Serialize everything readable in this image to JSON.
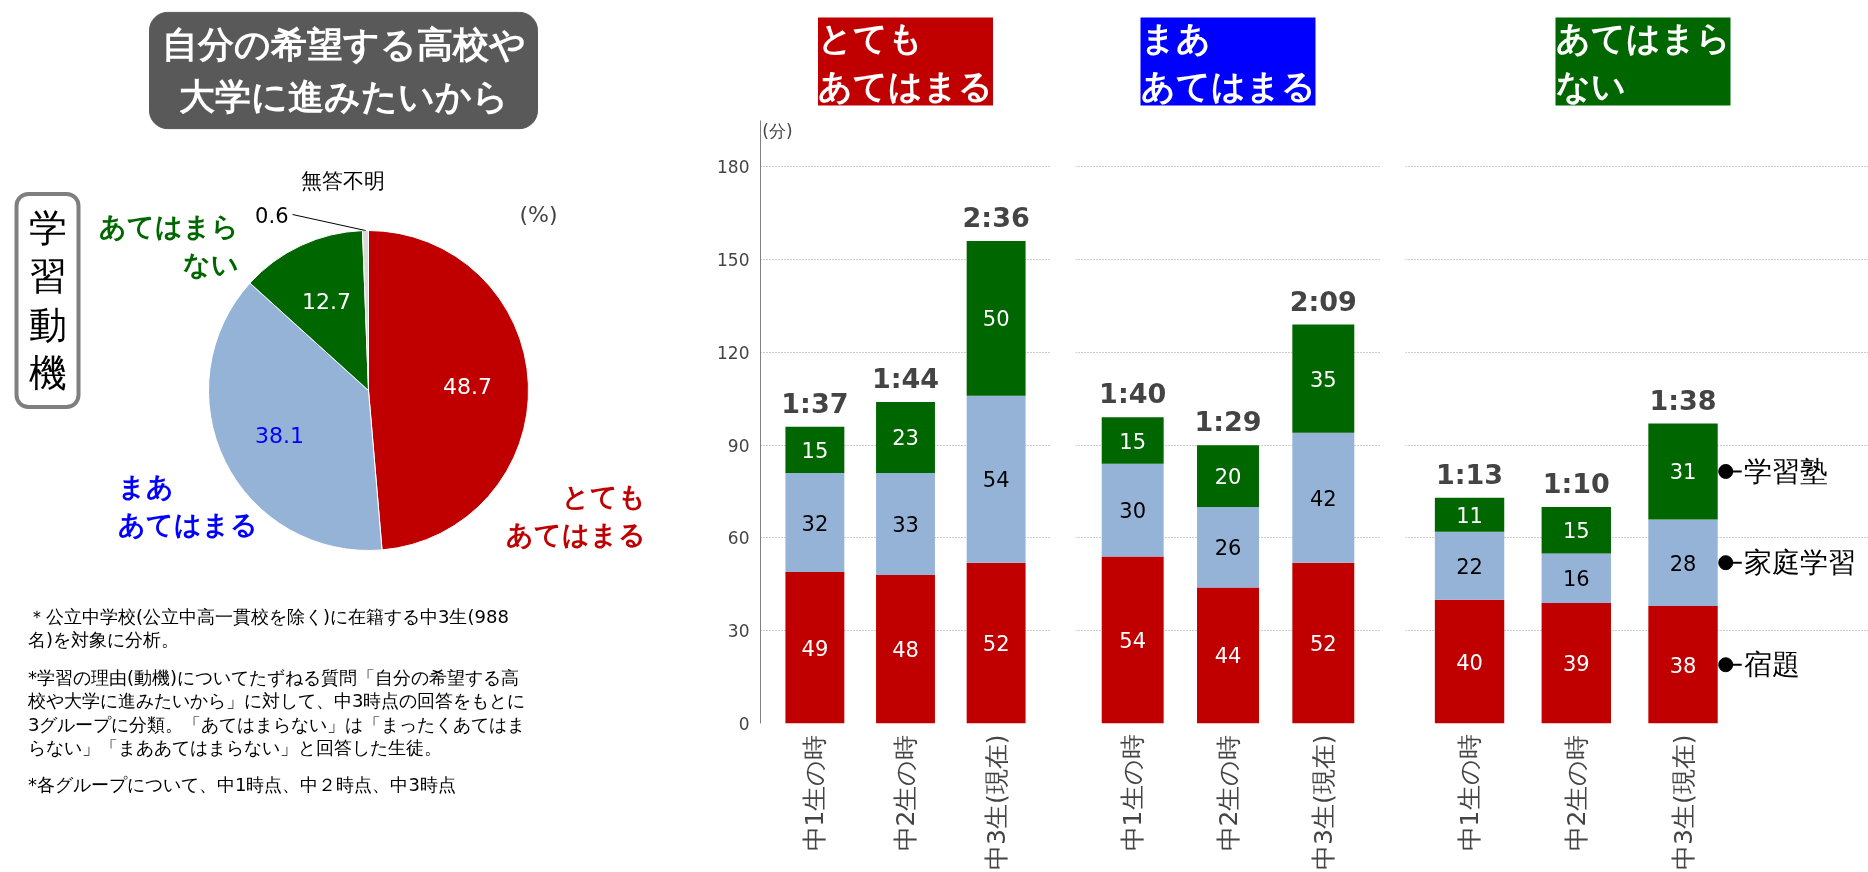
{
  "chart_data": [
    {
      "type": "pie",
      "title": "自分の希望する高校や大学に進みたいから",
      "categories": [
        "とてもあてはまる",
        "まああてはまる",
        "あてはまらない",
        "無答不明"
      ],
      "values": [
        48.7,
        38.1,
        12.7,
        0.6
      ],
      "colors": [
        "#c00000",
        "#95b3d7",
        "#006600",
        "#d9d9d9"
      ],
      "data_labels": true,
      "annotations": [
        "学習動機",
        "(%)",
        "＊公立中学校(公立中高一貫校を除く)に在籍する中3生(988名)を対象に分析。",
        "*学習の理由(動機)についてたずねる質問「自分の希望する高校や大学に進みたいから」に対して、中3時点の回答をもとに3グループに分類。「あてはまらない」は「まったくあてはまらない」「まああてはまらない」と回答した生徒。",
        "*各グループについて、中1時点、中２時点、中3時点"
      ]
    },
    {
      "type": "bar",
      "title": "とてもあてはまる",
      "ylabel": "(分)",
      "stacked": true,
      "categories": [
        "中1生の時",
        "中2生の時",
        "中3生(現在)"
      ],
      "series": [
        {
          "color": "#c00000",
          "values": [
            49,
            48,
            52
          ]
        },
        {
          "color": "#95b3d7",
          "values": [
            32,
            33,
            54
          ]
        },
        {
          "color": "#006600",
          "values": [
            15,
            23,
            50
          ]
        }
      ],
      "ylim": [
        0,
        195
      ],
      "yticks": [
        0,
        30,
        60,
        90,
        120,
        150,
        180
      ],
      "grid": "y",
      "data_labels": true,
      "totals": [
        "1:37",
        "1:44",
        "2:36"
      ]
    },
    {
      "type": "bar",
      "title": "まああてはまる",
      "stacked": true,
      "categories": [
        "中1生の時",
        "中2生の時",
        "中3生(現在)"
      ],
      "series": [
        {
          "color": "#c00000",
          "values": [
            54,
            44,
            52
          ]
        },
        {
          "color": "#95b3d7",
          "values": [
            30,
            26,
            42
          ]
        },
        {
          "color": "#006600",
          "values": [
            15,
            20,
            35
          ]
        }
      ],
      "yticks": [
        0,
        30,
        60,
        90,
        120,
        150,
        180
      ],
      "grid": "y",
      "data_labels": true,
      "tick_labels": "x",
      "totals": [
        "1:40",
        "1:29",
        "2:09"
      ]
    },
    {
      "type": "bar",
      "title": "あてはまらない",
      "stacked": true,
      "categories": [
        "中1生の時",
        "中2生の時",
        "中3生(現在)"
      ],
      "series": [
        {
          "name": "宿題",
          "color": "#c00000",
          "values": [
            40,
            39,
            38
          ]
        },
        {
          "name": "家庭学習",
          "color": "#95b3d7",
          "values": [
            22,
            16,
            28
          ]
        },
        {
          "name": "学習塾",
          "color": "#006600",
          "values": [
            11,
            15,
            31
          ]
        }
      ],
      "yticks": [
        0,
        30,
        60,
        90,
        120,
        150,
        180
      ],
      "grid": "y",
      "data_labels": true,
      "tick_labels": "x",
      "totals": [
        "1:13",
        "1:10",
        "1:38"
      ]
    }
  ]
}
